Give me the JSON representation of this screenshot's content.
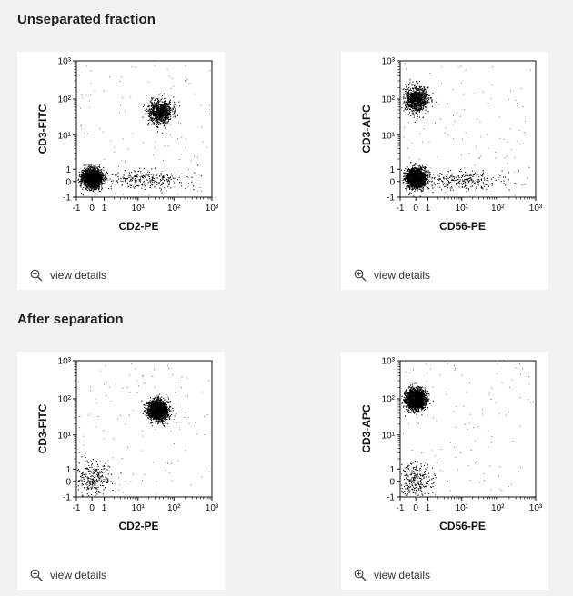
{
  "sections": [
    {
      "title": "Unseparated fraction"
    },
    {
      "title": "After separation"
    }
  ],
  "view_details_label": "view details",
  "icons": {
    "view_details": "zoom-in-icon"
  },
  "colors": {
    "background": "#f2f2f2",
    "card": "#ffffff",
    "dots": "#000000"
  },
  "chart_data": [
    {
      "type": "scatter",
      "section": "Unseparated fraction",
      "xlabel": "CD2-PE",
      "ylabel": "CD3-FITC",
      "x_scale": "biexponential",
      "y_scale": "biexponential",
      "xlim": [
        -1,
        1000
      ],
      "ylim": [
        -1,
        1000
      ],
      "x_ticks": [
        "-1",
        "0",
        "1",
        "10¹",
        "10²",
        "10³"
      ],
      "y_ticks": [
        "-1",
        "0",
        "1",
        "10¹",
        "10²",
        "10³"
      ],
      "populations": [
        {
          "center": [
            0,
            0.3
          ],
          "density": "very high"
        },
        {
          "center": [
            40,
            45
          ],
          "density": "high"
        },
        {
          "center": [
            15,
            0.2
          ],
          "density": "low"
        }
      ]
    },
    {
      "type": "scatter",
      "section": "Unseparated fraction",
      "xlabel": "CD56-PE",
      "ylabel": "CD3-APC",
      "x_scale": "biexponential",
      "y_scale": "biexponential",
      "xlim": [
        -1,
        1000
      ],
      "ylim": [
        -1,
        1000
      ],
      "x_ticks": [
        "-1",
        "0",
        "1",
        "10¹",
        "10²",
        "10³"
      ],
      "y_ticks": [
        "-1",
        "0",
        "1",
        "10¹",
        "10²",
        "10³"
      ],
      "populations": [
        {
          "center": [
            0,
            100
          ],
          "density": "high"
        },
        {
          "center": [
            0,
            0.3
          ],
          "density": "very high"
        },
        {
          "center": [
            10,
            0.1
          ],
          "density": "low"
        }
      ]
    },
    {
      "type": "scatter",
      "section": "After separation",
      "xlabel": "CD2-PE",
      "ylabel": "CD3-FITC",
      "x_scale": "biexponential",
      "y_scale": "biexponential",
      "xlim": [
        -1,
        1000
      ],
      "ylim": [
        -1,
        1000
      ],
      "x_ticks": [
        "-1",
        "0",
        "1",
        "10¹",
        "10²",
        "10³"
      ],
      "y_ticks": [
        "-1",
        "0",
        "1",
        "10¹",
        "10²",
        "10³"
      ],
      "populations": [
        {
          "center": [
            35,
            50
          ],
          "density": "very high"
        },
        {
          "center": [
            0,
            0.3
          ],
          "density": "low"
        }
      ]
    },
    {
      "type": "scatter",
      "section": "After separation",
      "xlabel": "CD56-PE",
      "ylabel": "CD3-APC",
      "x_scale": "biexponential",
      "y_scale": "biexponential",
      "xlim": [
        -1,
        1000
      ],
      "ylim": [
        -1,
        1000
      ],
      "x_ticks": [
        "-1",
        "0",
        "1",
        "10¹",
        "10²",
        "10³"
      ],
      "y_ticks": [
        "-1",
        "0",
        "1",
        "10¹",
        "10²",
        "10³"
      ],
      "populations": [
        {
          "center": [
            0,
            100
          ],
          "density": "very high"
        },
        {
          "center": [
            0,
            0.1
          ],
          "density": "low"
        }
      ]
    }
  ]
}
